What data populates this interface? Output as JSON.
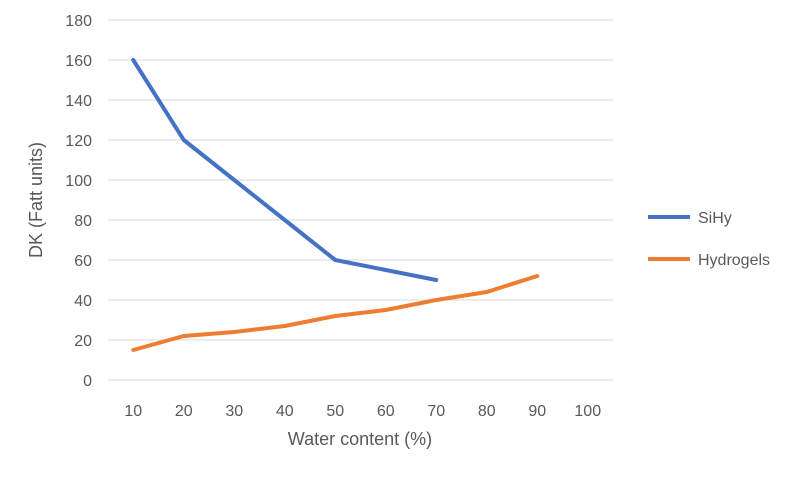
{
  "chart_data": {
    "type": "line",
    "title": "",
    "xlabel": "Water content (%)",
    "ylabel": "DK (Fatt units)",
    "categories": [
      10,
      20,
      30,
      40,
      50,
      60,
      70,
      80,
      90,
      100
    ],
    "ylim": [
      0,
      180
    ],
    "yticks": [
      0,
      20,
      40,
      60,
      80,
      100,
      120,
      140,
      160,
      180
    ],
    "grid": true,
    "legend_position": "right",
    "series": [
      {
        "name": "SiHy",
        "color": "#4472C4",
        "values": [
          160,
          120,
          100,
          80,
          60,
          55,
          50,
          null,
          null,
          null
        ]
      },
      {
        "name": "Hydrogels",
        "color": "#ED7D31",
        "values": [
          15,
          22,
          24,
          27,
          32,
          35,
          40,
          44,
          52,
          null
        ]
      }
    ]
  }
}
